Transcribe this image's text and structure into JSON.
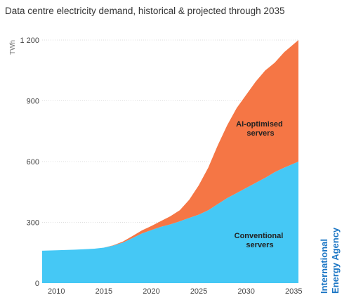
{
  "chart_data": {
    "type": "area",
    "stacked": true,
    "title": "Data centre electricity demand, historical & projected through 2035",
    "ylabel": "TWh",
    "xlabel": "",
    "ylim": [
      0,
      1200
    ],
    "xlim": [
      2008.5,
      2035.5
    ],
    "y_ticks": [
      0,
      300,
      600,
      900,
      1200
    ],
    "y_tick_labels": [
      "0",
      "300",
      "600",
      "900",
      "1 200"
    ],
    "x_ticks": [
      2010,
      2015,
      2020,
      2025,
      2030,
      2035
    ],
    "x_tick_labels": [
      "2010",
      "2015",
      "2020",
      "2025",
      "2030",
      "2035"
    ],
    "grid": true,
    "legend": "none",
    "x": [
      2008.5,
      2010,
      2012,
      2014,
      2015,
      2016,
      2017,
      2018,
      2019,
      2020,
      2021,
      2022,
      2023,
      2024,
      2025,
      2026,
      2027,
      2028,
      2029,
      2030,
      2031,
      2032,
      2033,
      2034,
      2035,
      2035.5
    ],
    "series": [
      {
        "name": "Conventional servers",
        "color": "#45c8f5",
        "values": [
          160,
          162,
          165,
          170,
          175,
          185,
          200,
          222,
          245,
          262,
          278,
          290,
          305,
          322,
          338,
          360,
          390,
          420,
          445,
          470,
          495,
          520,
          548,
          570,
          590,
          600
        ]
      },
      {
        "name": "AI-optimised servers",
        "color": "#f57645",
        "values": [
          0,
          0,
          0,
          0,
          0,
          2,
          5,
          10,
          15,
          20,
          28,
          40,
          55,
          90,
          145,
          210,
          290,
          360,
          420,
          460,
          500,
          530,
          540,
          570,
          590,
          600
        ]
      }
    ],
    "annotations": [
      "AI-optimised servers",
      "Conventional servers"
    ],
    "source_logo": "International Energy Agency"
  },
  "labels": {
    "ai_line1": "AI-optimised",
    "ai_line2": "servers",
    "conv_line1": "Conventional",
    "conv_line2": "servers",
    "brand_line1": "International",
    "brand_line2": "Energy Agency"
  },
  "colors": {
    "conventional": "#45c8f5",
    "ai": "#f57645",
    "brand": "#1a75c4",
    "grid": "#dddddd"
  }
}
